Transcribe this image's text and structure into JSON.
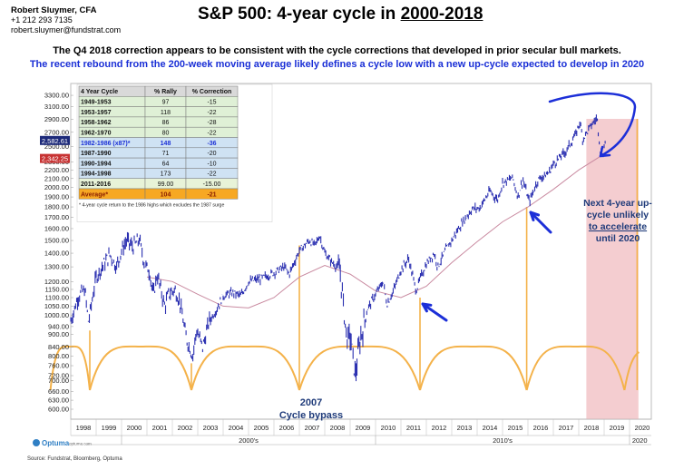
{
  "header": {
    "author_name": "Robert Sluymer, CFA",
    "author_phone": "+1 212 293 7135",
    "author_email": "robert.sluymer@fundstrat.com",
    "title_prefix": "S&P 500: 4-year cycle in ",
    "title_years": "2000-2018",
    "subtitle_1": "The Q4 2018 correction appears to be consistent with the cycle corrections that developed in prior secular bull markets.",
    "subtitle_2": "The  recent rebound from the 200-week moving average likely defines a cycle low with a new up-cycle expected to develop in 2020"
  },
  "chart_data": {
    "type": "line",
    "y_scale": "log",
    "y_ticks": [
      "3300.00",
      "3100.00",
      "2900.00",
      "2700.00",
      "2500.00",
      "2300.00",
      "2200.00",
      "2100.00",
      "2000.00",
      "1900.00",
      "1800.00",
      "1700.00",
      "1600.00",
      "1500.00",
      "1400.00",
      "1300.00",
      "1200.00",
      "1150.00",
      "1100.00",
      "1050.00",
      "1000.00",
      "940.00",
      "900.00",
      "840.00",
      "800.00",
      "760.00",
      "720.00",
      "700.00",
      "660.00",
      "630.00",
      "600.00"
    ],
    "y_tick_values": [
      3300,
      3100,
      2900,
      2700,
      2500,
      2300,
      2200,
      2100,
      2000,
      1900,
      1800,
      1700,
      1600,
      1500,
      1400,
      1300,
      1200,
      1150,
      1100,
      1050,
      1000,
      940,
      900,
      840,
      800,
      760,
      720,
      700,
      660,
      630,
      600
    ],
    "x_ticks": [
      "1998",
      "1999",
      "2000",
      "2001",
      "2002",
      "2003",
      "2004",
      "2005",
      "2006",
      "2007",
      "2008",
      "2009",
      "2010",
      "2011",
      "2012",
      "2013",
      "2014",
      "2015",
      "2016",
      "2017",
      "2018",
      "2019",
      "2020"
    ],
    "decades": [
      "2000's",
      "2010's",
      "2020"
    ],
    "price_badges": [
      {
        "value": 2582.61,
        "label": "2,582.61",
        "color": "#1d2a7a"
      },
      {
        "value": 2342.25,
        "label": "2,342.25",
        "color": "#c73232"
      }
    ],
    "series": [
      {
        "name": "",
        "kind": "weekly price",
        "color": "#2a2fb0",
        "points": [
          [
            1998.0,
            970
          ],
          [
            1998.3,
            1110
          ],
          [
            1998.55,
            1150
          ],
          [
            1998.7,
            960
          ],
          [
            1998.8,
            1050
          ],
          [
            1999.0,
            1230
          ],
          [
            1999.3,
            1320
          ],
          [
            1999.55,
            1390
          ],
          [
            1999.8,
            1300
          ],
          [
            2000.0,
            1420
          ],
          [
            2000.2,
            1500
          ],
          [
            2000.45,
            1450
          ],
          [
            2000.7,
            1510
          ],
          [
            2000.9,
            1320
          ],
          [
            2001.1,
            1270
          ],
          [
            2001.25,
            1110
          ],
          [
            2001.4,
            1250
          ],
          [
            2001.7,
            1050
          ],
          [
            2001.85,
            1120
          ],
          [
            2002.1,
            1150
          ],
          [
            2002.3,
            1070
          ],
          [
            2002.55,
            880
          ],
          [
            2002.8,
            800
          ],
          [
            2002.95,
            920
          ],
          [
            2003.2,
            840
          ],
          [
            2003.45,
            970
          ],
          [
            2003.7,
            1020
          ],
          [
            2004.0,
            1110
          ],
          [
            2004.4,
            1130
          ],
          [
            2004.7,
            1110
          ],
          [
            2005.0,
            1200
          ],
          [
            2005.5,
            1220
          ],
          [
            2006.0,
            1260
          ],
          [
            2006.4,
            1300
          ],
          [
            2006.6,
            1250
          ],
          [
            2007.0,
            1420
          ],
          [
            2007.4,
            1500
          ],
          [
            2007.6,
            1460
          ],
          [
            2007.8,
            1540
          ],
          [
            2008.0,
            1400
          ],
          [
            2008.3,
            1330
          ],
          [
            2008.6,
            1280
          ],
          [
            2008.8,
            960
          ],
          [
            2008.9,
            870
          ],
          [
            2009.0,
            900
          ],
          [
            2009.2,
            720
          ],
          [
            2009.4,
            880
          ],
          [
            2009.7,
            1040
          ],
          [
            2010.0,
            1120
          ],
          [
            2010.3,
            1200
          ],
          [
            2010.45,
            1060
          ],
          [
            2010.7,
            1140
          ],
          [
            2011.0,
            1280
          ],
          [
            2011.3,
            1360
          ],
          [
            2011.6,
            1140
          ],
          [
            2011.8,
            1240
          ],
          [
            2012.0,
            1320
          ],
          [
            2012.3,
            1400
          ],
          [
            2012.45,
            1300
          ],
          [
            2012.8,
            1440
          ],
          [
            2013.0,
            1500
          ],
          [
            2013.4,
            1650
          ],
          [
            2013.8,
            1780
          ],
          [
            2014.1,
            1790
          ],
          [
            2014.5,
            1960
          ],
          [
            2014.8,
            1870
          ],
          [
            2015.0,
            2050
          ],
          [
            2015.4,
            2110
          ],
          [
            2015.6,
            1900
          ],
          [
            2015.8,
            2090
          ],
          [
            2016.05,
            1850
          ],
          [
            2016.4,
            2090
          ],
          [
            2016.8,
            2160
          ],
          [
            2017.0,
            2270
          ],
          [
            2017.5,
            2440
          ],
          [
            2017.9,
            2680
          ],
          [
            2018.05,
            2870
          ],
          [
            2018.15,
            2600
          ],
          [
            2018.5,
            2810
          ],
          [
            2018.72,
            2920
          ],
          [
            2018.85,
            2450
          ],
          [
            2018.95,
            2380
          ],
          [
            2019.05,
            2600
          ]
        ]
      },
      {
        "name": "",
        "kind": "200-week moving average",
        "color": "#c98aa0",
        "points": [
          [
            2001.0,
            1230
          ],
          [
            2002.0,
            1200
          ],
          [
            2003.0,
            1120
          ],
          [
            2004.0,
            1050
          ],
          [
            2005.0,
            1040
          ],
          [
            2006.0,
            1100
          ],
          [
            2007.0,
            1230
          ],
          [
            2008.0,
            1310
          ],
          [
            2009.0,
            1250
          ],
          [
            2010.0,
            1140
          ],
          [
            2011.0,
            1100
          ],
          [
            2012.0,
            1170
          ],
          [
            2013.0,
            1330
          ],
          [
            2014.0,
            1490
          ],
          [
            2015.0,
            1660
          ],
          [
            2016.0,
            1800
          ],
          [
            2017.0,
            1980
          ],
          [
            2018.0,
            2200
          ],
          [
            2019.0,
            2400
          ]
        ]
      }
    ],
    "cycle_lows": [
      1998.75,
      2002.75,
      2007.0,
      2011.75,
      2015.95,
      2019.8
    ],
    "cycle_low_values": [
      920,
      770,
      1460,
      1100,
      1800
    ],
    "table": {
      "headers": [
        "4 Year Cycle",
        "% Rally",
        "% Correction"
      ],
      "rows": [
        {
          "cycle": "1949-1953",
          "rally": "97",
          "correction": "-15",
          "group": "green"
        },
        {
          "cycle": "1953-1957",
          "rally": "118",
          "correction": "-22",
          "group": "green"
        },
        {
          "cycle": "1958-1962",
          "rally": "86",
          "correction": "-28",
          "group": "green"
        },
        {
          "cycle": "1962-1970",
          "rally": "80",
          "correction": "-22",
          "group": "green"
        },
        {
          "cycle": "1982-1986 (x87)*",
          "rally": "148",
          "correction": "-36",
          "group": "blue"
        },
        {
          "cycle": "1987-1990",
          "rally": "71",
          "correction": "-20",
          "group": "blue"
        },
        {
          "cycle": "1990-1994",
          "rally": "64",
          "correction": "-10",
          "group": "blue"
        },
        {
          "cycle": "1994-1998",
          "rally": "173",
          "correction": "-22",
          "group": "blue"
        },
        {
          "cycle": "2011-2016",
          "rally": "99.00",
          "correction": "-15.00",
          "group": "lightgreen"
        },
        {
          "cycle": "Average*",
          "rally": "104",
          "correction": "-21",
          "group": "orange"
        }
      ],
      "footnote": "* 4-year cycle return to the 1986 highs which excludes the 1987 surge"
    },
    "annotations": {
      "bypass_year": "2007",
      "bypass_text": "Cycle bypass",
      "next_cycle_1": "Next 4-year up-",
      "next_cycle_2": "cycle unlikely",
      "next_cycle_3": "to accelerate",
      "next_cycle_4": "until 2020"
    },
    "colors": {
      "cycle_arc": "#f4b24a",
      "pink_zone": "#f2c4c8",
      "arrow": "#1c2fd8"
    }
  },
  "footer": {
    "logo_text": "Optuma",
    "logo_sub": "optuma.com",
    "source": "Source: Fundstrat, Bloomberg, Optuma"
  }
}
